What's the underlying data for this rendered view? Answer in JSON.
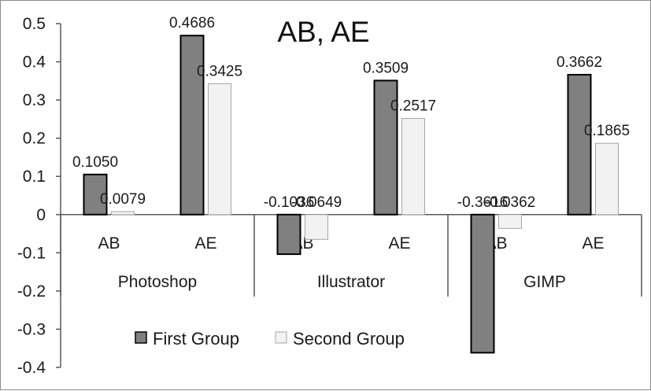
{
  "chart_data": {
    "type": "bar",
    "title": "AB, AE",
    "xlabel": "",
    "ylabel": "",
    "groups": [
      "Photoshop",
      "Illustrator",
      "GIMP"
    ],
    "subcategories": [
      "AB",
      "AE"
    ],
    "categories": [
      "AB",
      "AE",
      "AB",
      "AE",
      "AB",
      "AE"
    ],
    "series": [
      {
        "name": "First Group",
        "color": "#808080",
        "values": [
          0.105,
          0.4686,
          -0.1036,
          0.3509,
          -0.3616,
          0.3662
        ]
      },
      {
        "name": "Second Group",
        "color": "#f2f2f2",
        "values": [
          0.0079,
          0.3425,
          -0.0649,
          0.2517,
          -0.0362,
          0.1865
        ]
      }
    ],
    "data_labels": [
      [
        "0.1050",
        "0.4686",
        "-0.1036",
        "0.3509",
        "-0.3616",
        "0.3662"
      ],
      [
        "0.0079",
        "0.3425",
        "-0.0649",
        "0.2517",
        "-0.0362",
        "0.1865"
      ]
    ],
    "ylim": [
      -0.4,
      0.5
    ],
    "yticks": [
      0.5,
      0.4,
      0.3,
      0.2,
      0.1,
      0,
      -0.1,
      -0.2,
      -0.3,
      -0.4
    ],
    "ytick_labels": [
      "0.5",
      "0.4",
      "0.3",
      "0.2",
      "0.1",
      "0",
      "-0.1",
      "-0.2",
      "-0.3",
      "-0.4"
    ],
    "grid": false,
    "legend_position": "bottom-center"
  }
}
